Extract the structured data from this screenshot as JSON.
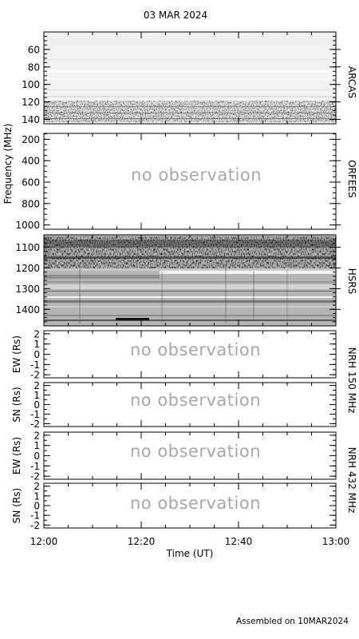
{
  "header": {
    "date": "03 MAR 2024"
  },
  "footer": {
    "text": "Assembled on 10MAR2024"
  },
  "chart_data": {
    "type": "heatmap",
    "title": "03 MAR 2024",
    "xlabel": "Time (UT)",
    "x_ticks": [
      "12:00",
      "12:20",
      "12:40",
      "13:00"
    ],
    "panels": [
      {
        "instrument": "ARCAS",
        "ylabel": "",
        "y_ticks": [
          "60",
          "80",
          "100",
          "120",
          "140"
        ],
        "ylim": [
          40,
          145
        ],
        "observed": true
      },
      {
        "instrument": "ORFEES",
        "ylabel": "Frequency (MHz)",
        "y_ticks": [
          "200",
          "400",
          "600",
          "800",
          "1000"
        ],
        "ylim": [
          145,
          1040
        ],
        "observed": false,
        "message": "no observation"
      },
      {
        "instrument": "HSRS",
        "ylabel": "",
        "y_ticks": [
          "1100",
          "1200",
          "1300",
          "1400"
        ],
        "ylim": [
          1040,
          1480
        ],
        "observed": true
      },
      {
        "instrument": "NRH 150 MHz",
        "ylabel": "EW (Rs)",
        "y_ticks": [
          "2",
          "1",
          "0",
          "-1",
          "-2"
        ],
        "ylim": [
          -2.3,
          2.3
        ],
        "observed": false,
        "message": "no observation"
      },
      {
        "instrument": "NRH 150 MHz",
        "ylabel": "SN (Rs)",
        "y_ticks": [
          "2",
          "1",
          "0",
          "-1",
          "-2"
        ],
        "ylim": [
          -2.3,
          2.3
        ],
        "observed": false,
        "message": "no observation"
      },
      {
        "instrument": "NRH 432 MHz",
        "ylabel": "EW (Rs)",
        "y_ticks": [
          "2",
          "1",
          "0",
          "-1",
          "-2"
        ],
        "ylim": [
          -2.3,
          2.3
        ],
        "observed": false,
        "message": "no observation"
      },
      {
        "instrument": "NRH 432 MHz",
        "ylabel": "SN (Rs)",
        "y_ticks": [
          "2",
          "1",
          "0",
          "-1",
          "-2"
        ],
        "ylim": [
          -2.3,
          2.3
        ],
        "observed": false,
        "message": "no observation"
      }
    ],
    "right_labels": [
      "ARCAS",
      "ORFEES",
      "HSRS",
      "NRH 150 MHz",
      "NRH 432 MHz"
    ]
  }
}
